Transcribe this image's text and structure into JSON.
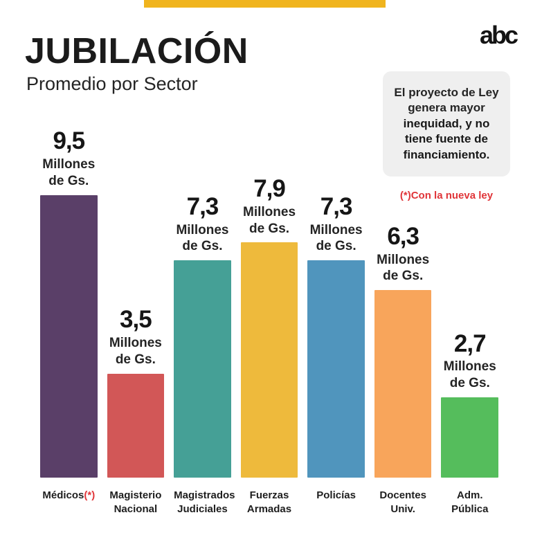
{
  "header": {
    "logo": "abc",
    "accent_bar_color": "#f0b41e"
  },
  "note": {
    "regular": "El proyecto de Ley genera mayor ",
    "bold": "inequidad, y no tiene fuente de financiamiento.",
    "footnote": "(*)Con la nueva ley",
    "footnote_color": "#e03539",
    "box_background": "#efefef"
  },
  "shared": {
    "unit_line1": "Millones",
    "unit_line2": "de Gs."
  },
  "columns": [
    {
      "value_label": "9,5",
      "label_line1": "Médicos",
      "marker": "(*)",
      "label_line2": ""
    },
    {
      "value_label": "3,5",
      "label_line1": "Magisterio",
      "label_line2": "Nacional"
    },
    {
      "value_label": "7,3",
      "label_line1": "Magistrados",
      "label_line2": "Judiciales"
    },
    {
      "value_label": "7,9",
      "label_line1": "Fuerzas",
      "label_line2": "Armadas"
    },
    {
      "value_label": "7,3",
      "label_line1": "Policías",
      "label_line2": ""
    },
    {
      "value_label": "6,3",
      "label_line1": "Docentes",
      "label_line2": "Univ."
    },
    {
      "value_label": "2,7",
      "label_line1": "Adm.",
      "label_line2": "Pública"
    }
  ],
  "chart_data": {
    "type": "bar",
    "title": "JUBILACIÓN",
    "subtitle": "Promedio por Sector",
    "unit": "Millones de Gs.",
    "categories": [
      "Médicos(*)",
      "Magisterio Nacional",
      "Magistrados Judiciales",
      "Fuerzas Armadas",
      "Policías",
      "Docentes Univ.",
      "Adm. Pública"
    ],
    "values": [
      9.5,
      3.5,
      7.3,
      7.9,
      7.3,
      6.3,
      2.7
    ],
    "value_labels": [
      "9,5",
      "3,5",
      "7,3",
      "7,9",
      "7,3",
      "6,3",
      "2,7"
    ],
    "bar_colors": [
      "#5a3f68",
      "#d25757",
      "#45a096",
      "#eeba3c",
      "#5095bd",
      "#f8a55b",
      "#55bd5c"
    ],
    "xlabel": "",
    "ylabel": "",
    "ylim": [
      0,
      10
    ],
    "grid": false,
    "legend": "none",
    "annotation": "(*)Con la nueva ley"
  }
}
